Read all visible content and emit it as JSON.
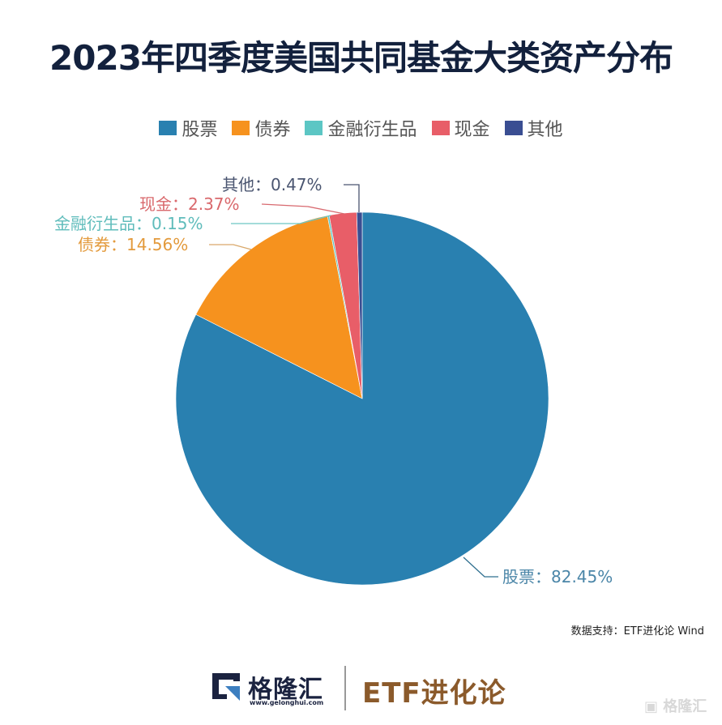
{
  "header": {
    "title": "2023年四季度美国共同基金大类资产分布"
  },
  "legend": [
    {
      "label": "股票",
      "color": "#2980b0"
    },
    {
      "label": "债券",
      "color": "#f6921e"
    },
    {
      "label": "金融衍生品",
      "color": "#5cc6c4"
    },
    {
      "label": "现金",
      "color": "#e85e68"
    },
    {
      "label": "其他",
      "color": "#3a4e92"
    }
  ],
  "labels": {
    "stocks": "股票：82.45%",
    "bonds": "债券：14.56%",
    "derivatives": "金融衍生品：0.15%",
    "cash": "现金：2.37%",
    "other": "其他：0.47%"
  },
  "source": "数据支持：ETF进化论 Wind",
  "footer": {
    "brand_cn": "格隆汇",
    "brand_url": "www.gelonghui.com",
    "partner": "ETF进化论",
    "watermark": "格隆汇"
  },
  "chart_data": {
    "type": "pie",
    "title": "2023年四季度美国共同基金大类资产分布",
    "categories": [
      "股票",
      "债券",
      "金融衍生品",
      "现金",
      "其他"
    ],
    "values": [
      82.45,
      14.56,
      0.15,
      2.37,
      0.47
    ],
    "unit": "%",
    "colors": [
      "#2980b0",
      "#f6921e",
      "#5cc6c4",
      "#e85e68",
      "#3a4e92"
    ],
    "legend_position": "top",
    "start_angle": "12 o'clock, clockwise"
  }
}
